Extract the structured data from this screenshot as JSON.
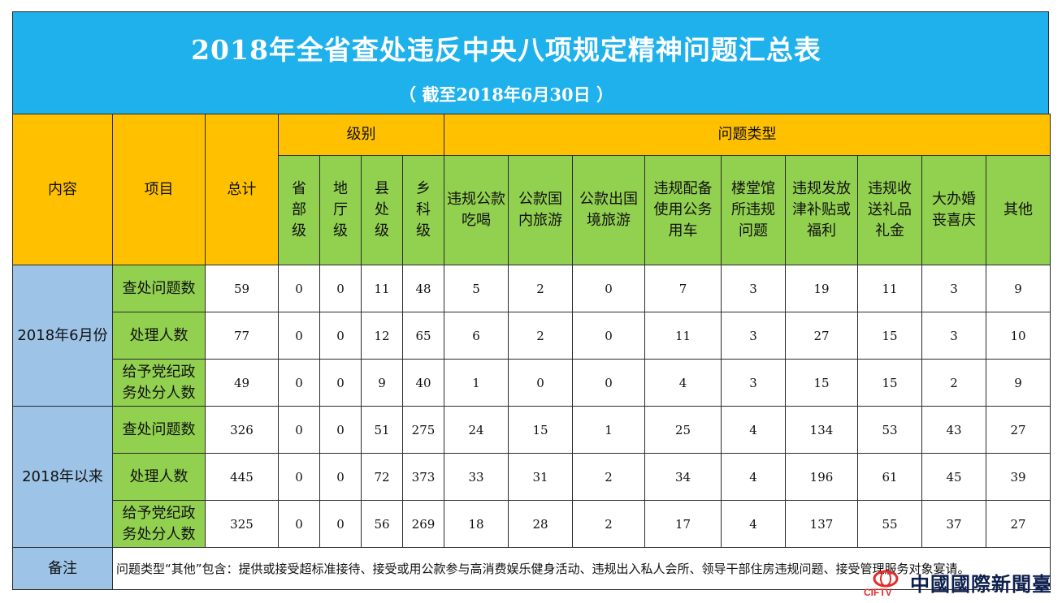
{
  "title": "2018年全省查处违反中央八项规定精神问题汇总表",
  "subtitle": "（ 截至2018年6月30日 ）",
  "header": {
    "content": "内容",
    "item": "项目",
    "total": "总计",
    "level_group": "级别",
    "type_group": "问题类型",
    "levels": [
      "省部级",
      "地厅级",
      "县处级",
      "乡科级"
    ],
    "types": [
      "违规公款吃喝",
      "公款国内旅游",
      "公款出国境旅游",
      "违规配备使用公务用车",
      "楼堂馆所违规问题",
      "违规发放津补贴或福利",
      "违规收送礼品礼金",
      "大办婚丧喜庆",
      "其他"
    ]
  },
  "groups": [
    {
      "label": "2018年6月份",
      "rows": [
        {
          "item": "查处问题数",
          "values": [
            "59",
            "0",
            "0",
            "11",
            "48",
            "5",
            "2",
            "0",
            "7",
            "3",
            "19",
            "11",
            "3",
            "9"
          ]
        },
        {
          "item": "处理人数",
          "values": [
            "77",
            "0",
            "0",
            "12",
            "65",
            "6",
            "2",
            "0",
            "11",
            "3",
            "27",
            "15",
            "3",
            "10"
          ]
        },
        {
          "item": "给予党纪政务处分人数",
          "values": [
            "49",
            "0",
            "0",
            "9",
            "40",
            "1",
            "0",
            "0",
            "4",
            "3",
            "15",
            "15",
            "2",
            "9"
          ]
        }
      ]
    },
    {
      "label": "2018年以来",
      "rows": [
        {
          "item": "查处问题数",
          "values": [
            "326",
            "0",
            "0",
            "51",
            "275",
            "24",
            "15",
            "1",
            "25",
            "4",
            "134",
            "53",
            "43",
            "27"
          ]
        },
        {
          "item": "处理人数",
          "values": [
            "445",
            "0",
            "0",
            "72",
            "373",
            "33",
            "31",
            "2",
            "34",
            "4",
            "196",
            "61",
            "45",
            "39"
          ]
        },
        {
          "item": "给予党纪政务处分人数",
          "values": [
            "325",
            "0",
            "0",
            "56",
            "269",
            "18",
            "28",
            "2",
            "17",
            "4",
            "137",
            "55",
            "37",
            "27"
          ]
        }
      ]
    }
  ],
  "note": {
    "label": "备注",
    "text": "问题类型“其他”包含：提供或接受超标准接待、接受或用公款参与高消费娱乐健身活动、违规出入私人会所、领导干部住房违规问题、接受管理服务对象宴请。"
  },
  "watermark": {
    "icon": "cift-tv-logo-icon",
    "logo_text": "CIFTV",
    "text": "中國國際新聞臺"
  },
  "colors": {
    "title_band": "#1fb1ec",
    "header_orange": "#ffc000",
    "header_green": "#92d050",
    "row_label_blue": "#9dc3e6"
  }
}
